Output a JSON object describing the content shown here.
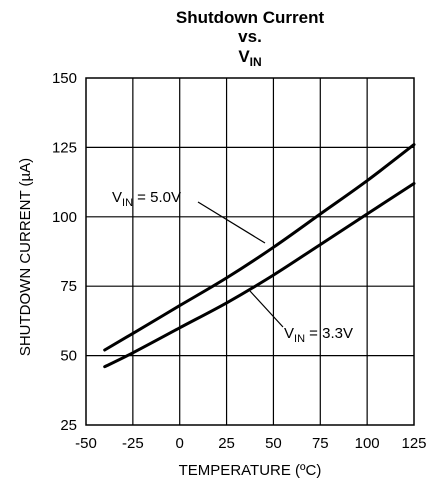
{
  "chart_data": {
    "type": "line",
    "title_line1": "Shutdown Current",
    "title_line2": "vs.",
    "title_line3_main": "V",
    "title_line3_sub": "IN",
    "xlabel": "TEMPERATURE (ºC)",
    "ylabel": "SHUTDOWN CURRENT (µA)",
    "xlim": [
      -50,
      125
    ],
    "ylim": [
      25,
      150
    ],
    "x_ticks": [
      "-50",
      "-25",
      "0",
      "25",
      "50",
      "75",
      "100",
      "125"
    ],
    "y_ticks": [
      "25",
      "50",
      "75",
      "100",
      "125",
      "150"
    ],
    "grid": true,
    "series": [
      {
        "label_main": "V",
        "label_sub": "IN",
        "label_rest": " = 5.0V",
        "x": [
          -40,
          -25,
          0,
          25,
          50,
          75,
          100,
          125
        ],
        "y": [
          52,
          58,
          68,
          78,
          89,
          101,
          113,
          126
        ]
      },
      {
        "label_main": "V",
        "label_sub": "IN",
        "label_rest": " = 3.3V",
        "x": [
          -40,
          -25,
          0,
          25,
          50,
          75,
          100,
          125
        ],
        "y": [
          46,
          51,
          60,
          69,
          79,
          90,
          101,
          112
        ]
      }
    ]
  }
}
